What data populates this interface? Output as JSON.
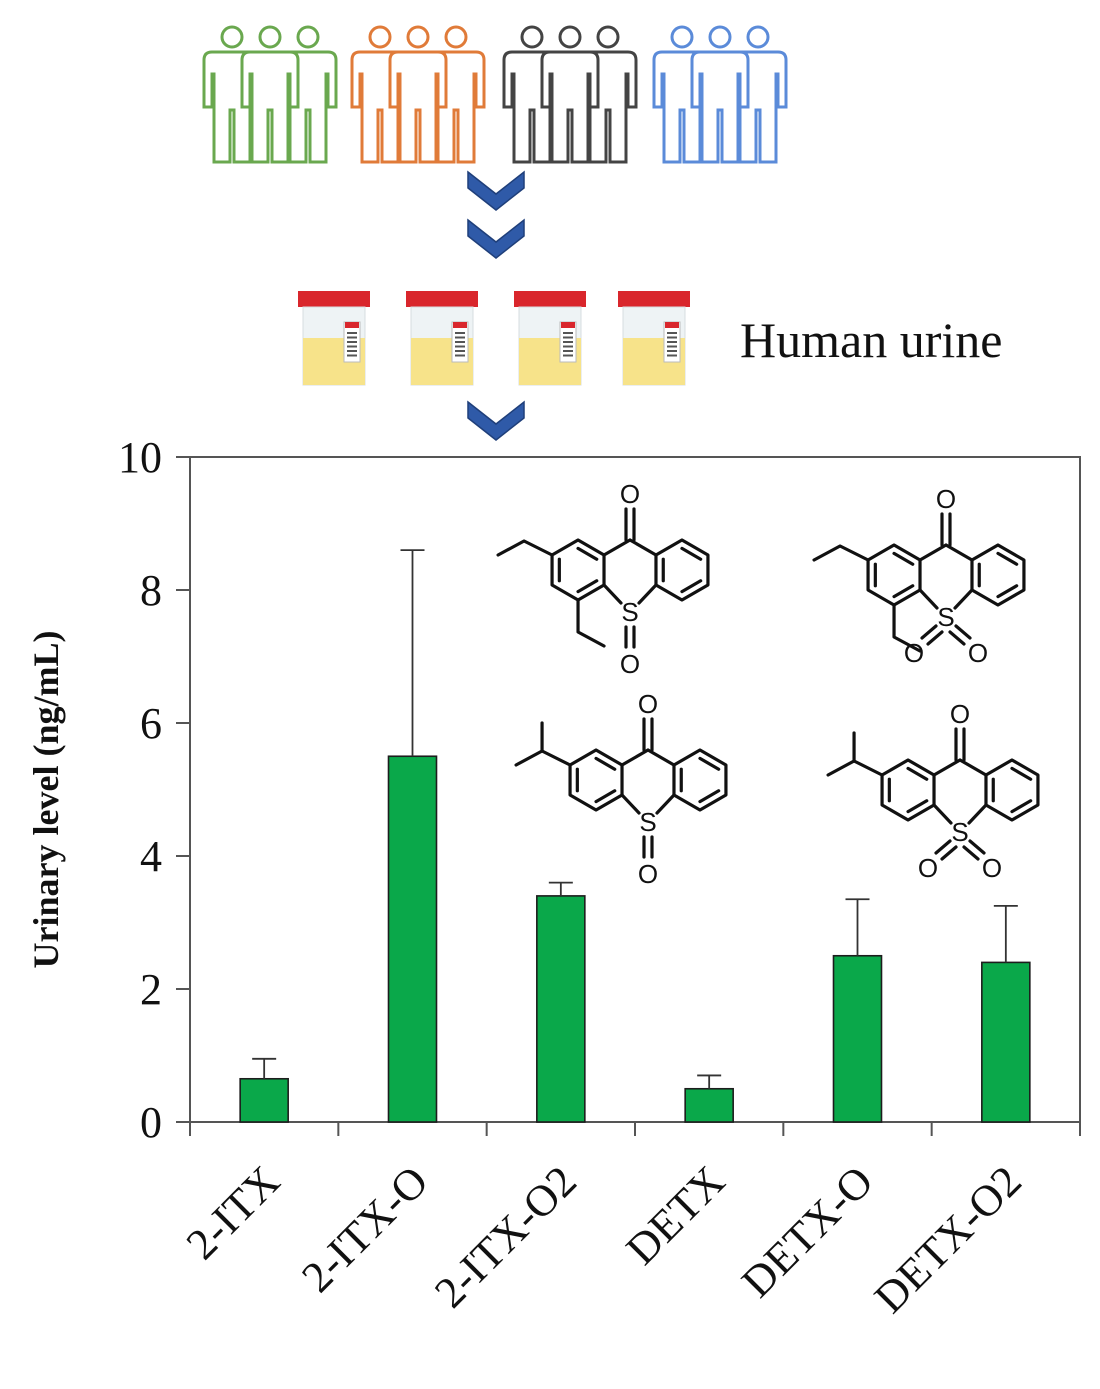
{
  "header": {
    "caption": "Human urine",
    "people_colors": [
      "#6aa84f",
      "#e07b39",
      "#444444",
      "#5b8bd9"
    ],
    "chevron_color": "#2f5aa8",
    "cup_lid_color": "#d9262c",
    "urine_color": "#f7e38a"
  },
  "chart_data": {
    "type": "bar",
    "categories": [
      "2-ITX",
      "2-ITX-O",
      "2-ITX-O2",
      "DETX",
      "DETX-O",
      "DETX-O2"
    ],
    "values": [
      0.65,
      5.5,
      3.4,
      0.5,
      2.5,
      2.4
    ],
    "errors": [
      0.3,
      3.1,
      0.2,
      0.2,
      0.85,
      0.85
    ],
    "ylabel": "Urinary level (ng/mL)",
    "ylim": [
      0,
      10
    ],
    "yticks": [
      "0",
      "2",
      "4",
      "6",
      "8",
      "10"
    ],
    "bar_color": "#0aa84a",
    "grid": false
  },
  "structures": {
    "atoms": {
      "oxygen": "O",
      "sulfur": "S"
    }
  }
}
